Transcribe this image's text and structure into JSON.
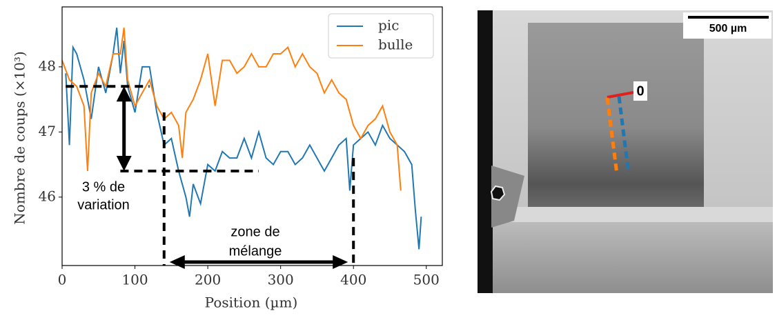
{
  "chart_data": {
    "type": "line",
    "y_label": "Nombre de coups (×10³)",
    "x_label": "Position (µm)",
    "xlim": [
      0,
      522
    ],
    "ylim": [
      44.95,
      48.92
    ],
    "xticks": [
      0,
      100,
      200,
      300,
      400,
      500
    ],
    "yticks": [
      46,
      47,
      48
    ],
    "legend": "upper right",
    "series": [
      {
        "name": "pic",
        "color": "#1f77b4",
        "x": [
          5,
          10,
          15,
          20,
          30,
          40,
          50,
          60,
          70,
          75,
          80,
          85,
          90,
          100,
          110,
          120,
          130,
          140,
          150,
          160,
          170,
          175,
          180,
          190,
          200,
          210,
          220,
          230,
          240,
          250,
          260,
          270,
          280,
          290,
          300,
          310,
          320,
          330,
          340,
          350,
          360,
          370,
          380,
          390,
          395,
          400,
          410,
          420,
          430,
          440,
          450,
          460,
          470,
          480,
          485,
          490,
          493
        ],
        "values": [
          47.9,
          46.8,
          48.3,
          48.2,
          47.8,
          47.2,
          48.0,
          47.6,
          48.2,
          48.6,
          47.9,
          48.4,
          47.7,
          47.3,
          48.0,
          48.0,
          47.3,
          46.8,
          46.9,
          46.4,
          46.0,
          45.7,
          46.2,
          45.9,
          46.5,
          46.4,
          46.7,
          46.6,
          46.6,
          46.9,
          46.6,
          47.0,
          46.6,
          46.5,
          46.7,
          46.7,
          46.5,
          46.6,
          46.8,
          46.6,
          46.4,
          46.6,
          46.8,
          46.9,
          46.1,
          46.8,
          46.9,
          47.0,
          46.8,
          47.1,
          46.9,
          46.8,
          46.7,
          46.5,
          45.8,
          45.2,
          45.7
        ]
      },
      {
        "name": "bulle",
        "color": "#ff7f0e",
        "x": [
          0,
          10,
          20,
          30,
          35,
          40,
          50,
          60,
          70,
          80,
          85,
          90,
          100,
          110,
          120,
          130,
          140,
          150,
          160,
          165,
          170,
          180,
          190,
          200,
          210,
          220,
          230,
          240,
          250,
          260,
          270,
          280,
          290,
          300,
          310,
          320,
          330,
          340,
          350,
          360,
          370,
          380,
          390,
          400,
          410,
          420,
          430,
          440,
          450,
          455,
          460,
          465
        ],
        "values": [
          48.1,
          47.8,
          47.7,
          47.4,
          46.4,
          47.6,
          47.9,
          47.7,
          48.2,
          48.2,
          48.6,
          47.8,
          47.4,
          47.6,
          47.8,
          47.4,
          47.2,
          47.3,
          47.1,
          46.6,
          47.3,
          47.5,
          47.8,
          48.2,
          47.4,
          48.1,
          48.1,
          47.9,
          48.0,
          48.2,
          48.0,
          48.0,
          48.2,
          48.2,
          48.3,
          48.0,
          48.2,
          48.0,
          47.9,
          47.6,
          47.8,
          47.6,
          47.5,
          47.1,
          46.9,
          47.1,
          47.2,
          47.4,
          47.0,
          46.9,
          46.8,
          46.1
        ]
      }
    ],
    "hlines": [
      47.7,
      46.4
    ],
    "vlines": [
      140,
      400
    ],
    "annotations": [
      "3 % de",
      "variation",
      "zone de",
      "mélange"
    ]
  },
  "image": {
    "scale_label": "500 µm",
    "marker_label": "0"
  }
}
